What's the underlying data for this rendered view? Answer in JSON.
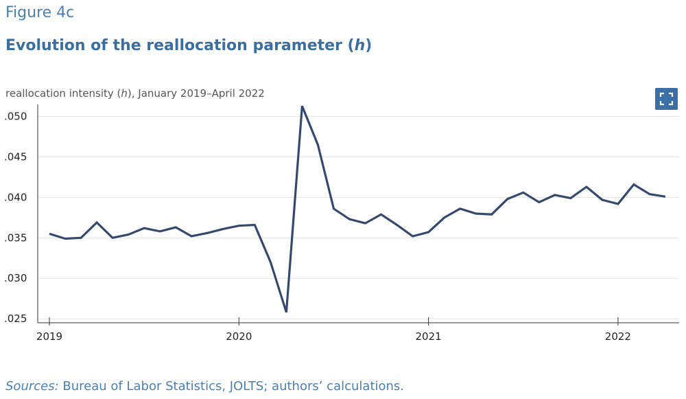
{
  "figure_label": "Figure 4c",
  "title_prefix": "Evolution of the reallocation parameter (",
  "title_var": "h",
  "title_suffix": ")",
  "subtitle_prefix": "reallocation intensity (",
  "subtitle_var": "h",
  "subtitle_suffix": "), January 2019–April 2022",
  "source_label": "Sources:",
  "source_text": " Bureau of Labor Statistics, JOLTS; authors’ calculations.",
  "expand_icon": "expand-icon",
  "colors": {
    "line": "#34496b",
    "accent": "#3b6fa5",
    "grid": "#e3e3e3"
  },
  "chart_data": {
    "type": "line",
    "x_start": "2019-01",
    "x_end": "2022-04",
    "x_tick_labels": [
      "2019",
      "2020",
      "2021",
      "2022"
    ],
    "y_tick_labels": [
      ".025",
      ".030",
      ".035",
      ".040",
      ".045",
      ".050"
    ],
    "y_ticks": [
      0.025,
      0.03,
      0.035,
      0.04,
      0.045,
      0.05
    ],
    "ylim": [
      0.0245,
      0.0515
    ],
    "grid": true,
    "series": [
      {
        "x": [
          "2019-01",
          "2019-02",
          "2019-03",
          "2019-04",
          "2019-05",
          "2019-06",
          "2019-07",
          "2019-08",
          "2019-09",
          "2019-10",
          "2019-11",
          "2019-12",
          "2020-01",
          "2020-02",
          "2020-03",
          "2020-04",
          "2020-05",
          "2020-06",
          "2020-07",
          "2020-08",
          "2020-09",
          "2020-10",
          "2020-11",
          "2020-12",
          "2021-01",
          "2021-02",
          "2021-03",
          "2021-04",
          "2021-05",
          "2021-06",
          "2021-07",
          "2021-08",
          "2021-09",
          "2021-10",
          "2021-11",
          "2021-12",
          "2022-01",
          "2022-02",
          "2022-03",
          "2022-04"
        ],
        "values": [
          0.0355,
          0.0349,
          0.035,
          0.0369,
          0.035,
          0.0354,
          0.0362,
          0.0358,
          0.0363,
          0.0352,
          0.0356,
          0.0361,
          0.0365,
          0.0366,
          0.032,
          0.0258,
          0.0513,
          0.0465,
          0.0386,
          0.0373,
          0.0368,
          0.0379,
          0.0366,
          0.0352,
          0.0357,
          0.0375,
          0.0386,
          0.038,
          0.0379,
          0.0398,
          0.0406,
          0.0394,
          0.0403,
          0.0399,
          0.0413,
          0.0397,
          0.0392,
          0.0416,
          0.0404,
          0.0401
        ]
      }
    ]
  }
}
